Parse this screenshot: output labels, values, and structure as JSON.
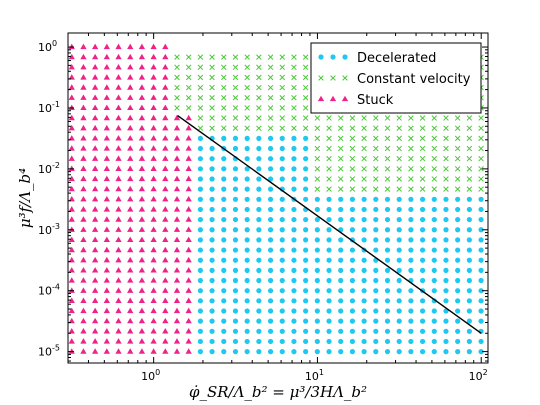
{
  "chart_data": {
    "type": "scatter",
    "xscale": "log",
    "yscale": "log",
    "xlim": [
      0.3,
      110
    ],
    "ylim": [
      6.5e-06,
      1.7
    ],
    "xlabel": "φ̇_SR/Λ_b² = μ³/3HΛ_b²",
    "ylabel": "μ³f/Λ_b⁴",
    "legend_position": "top-right",
    "x_ticks": [
      {
        "base": "10",
        "exp": "0"
      },
      {
        "base": "10",
        "exp": "1"
      },
      {
        "base": "10",
        "exp": "2"
      }
    ],
    "y_ticks": [
      {
        "base": "10",
        "exp": "0"
      },
      {
        "base": "10",
        "exp": "-1"
      },
      {
        "base": "10",
        "exp": "-2"
      },
      {
        "base": "10",
        "exp": "-3"
      },
      {
        "base": "10",
        "exp": "-4"
      },
      {
        "base": "10",
        "exp": "-5"
      }
    ],
    "x_tick_values": [
      1,
      10,
      100
    ],
    "y_tick_values": [
      1,
      0.1,
      0.01,
      0.001,
      0.0001,
      1e-05
    ],
    "x_exp_min": -0.5,
    "x_exp_step": 0.0714,
    "x_exp_count": 36,
    "y_exp_min": -5,
    "y_exp_step": 0.1667,
    "y_exp_count": 31,
    "series": [
      {
        "name": "Decelerated",
        "color": "#1ec8f0",
        "marker": "circle"
      },
      {
        "name": "Constant velocity",
        "color": "#4cc83a",
        "marker": "x"
      },
      {
        "name": "Stuck",
        "color": "#ee2288",
        "marker": "triangle"
      }
    ],
    "boundary_line": {
      "x": [
        1.4,
        100
      ],
      "y": [
        0.075,
        2e-05
      ],
      "color": "#000000"
    }
  }
}
